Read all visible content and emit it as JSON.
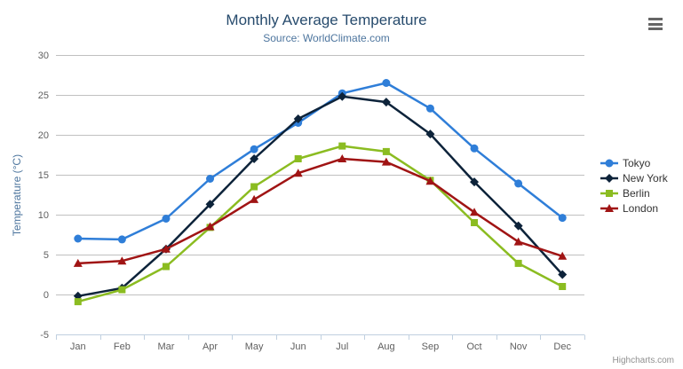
{
  "header": {
    "menu_icon": "hamburger"
  },
  "chart_data": {
    "type": "line",
    "title": "Monthly Average Temperature",
    "subtitle": "Source: WorldClimate.com",
    "categories": [
      "Jan",
      "Feb",
      "Mar",
      "Apr",
      "May",
      "Jun",
      "Jul",
      "Aug",
      "Sep",
      "Oct",
      "Nov",
      "Dec"
    ],
    "xlabel": "",
    "ylabel": "Temperature (°C)",
    "ylim": [
      -5,
      30
    ],
    "yticks": [
      -5,
      0,
      5,
      10,
      15,
      20,
      25,
      30
    ],
    "grid": true,
    "legend_position": "right",
    "series": [
      {
        "name": "Tokyo",
        "color": "#2f7ed8",
        "marker": "circle",
        "values": [
          7.0,
          6.9,
          9.5,
          14.5,
          18.2,
          21.5,
          25.2,
          26.5,
          23.3,
          18.3,
          13.9,
          9.6
        ]
      },
      {
        "name": "New York",
        "color": "#0d233a",
        "marker": "diamond",
        "values": [
          -0.2,
          0.8,
          5.7,
          11.3,
          17.0,
          22.0,
          24.8,
          24.1,
          20.1,
          14.1,
          8.6,
          2.5
        ]
      },
      {
        "name": "Berlin",
        "color": "#8bbc21",
        "marker": "square",
        "values": [
          -0.9,
          0.6,
          3.5,
          8.4,
          13.5,
          17.0,
          18.6,
          17.9,
          14.3,
          9.0,
          3.9,
          1.0
        ]
      },
      {
        "name": "London",
        "color": "#a01414",
        "marker": "triangle",
        "values": [
          3.9,
          4.2,
          5.7,
          8.5,
          11.9,
          15.2,
          17.0,
          16.6,
          14.2,
          10.3,
          6.6,
          4.8
        ]
      }
    ],
    "style": {
      "grid_color": "#C0C0C0",
      "axis_line_color": "#C0D0E0",
      "tick_label_color": "#606060"
    }
  },
  "credits": {
    "label": "Highcharts.com"
  }
}
